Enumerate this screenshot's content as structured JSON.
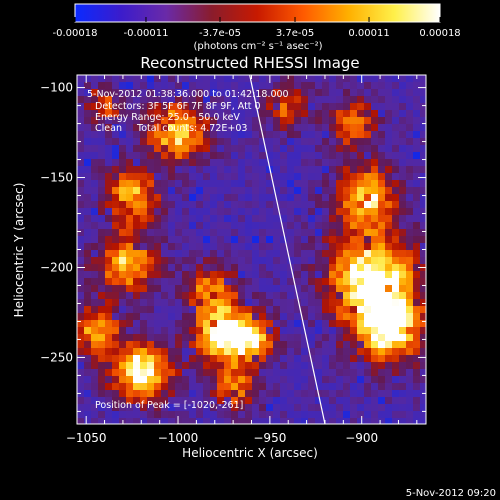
{
  "colorbar": {
    "ticks": [
      "-0.00018",
      "-0.00011",
      "-3.7e-05",
      "3.7e-05",
      "0.00011",
      "0.00018"
    ],
    "tick_values": [
      -0.00018,
      -0.00011,
      -3.7e-05,
      3.7e-05,
      0.00011,
      0.00018
    ],
    "range": [
      -0.00018,
      0.00018
    ],
    "unit_label": "(photons cm⁻² s⁻¹ asec⁻²)",
    "colors": [
      "#0a2aff",
      "#3b1ccc",
      "#6a2aa8",
      "#8a1c2c",
      "#c81a00",
      "#ff5a00",
      "#ffb000",
      "#fff04a",
      "#ffffff"
    ]
  },
  "chart_data": {
    "type": "heatmap",
    "title": "Reconstructed RHESSI Image",
    "xlabel": "Heliocentric X (arcsec)",
    "ylabel": "Heliocentric Y (arcsec)",
    "xlim": [
      -1055,
      -865
    ],
    "ylim": [
      -287,
      -93
    ],
    "x_ticks": [
      -1050,
      -1000,
      -950,
      -900
    ],
    "y_ticks": [
      -100,
      -150,
      -200,
      -250
    ],
    "annotations": [
      "5-Nov-2012 01:38:36.000 to 01:42:18.000",
      "Detectors: 3F 5F 6F 7F 8F 9F, Att 0",
      "Energy Range: 25.0 - 50.0 keV",
      "Clean     Total counts: 4.72E+03",
      "Position of Peak = [-1020,-261]"
    ],
    "peak": [
      -1020,
      -261
    ],
    "limb_line": [
      [
        -961,
        -93
      ],
      [
        -920,
        -287
      ]
    ],
    "hotspots": [
      {
        "x": -1000,
        "y": -125,
        "s": 12,
        "a": 0.85
      },
      {
        "x": -1025,
        "y": -160,
        "s": 11,
        "a": 0.75
      },
      {
        "x": -1028,
        "y": -198,
        "s": 12,
        "a": 0.8
      },
      {
        "x": -1045,
        "y": -235,
        "s": 10,
        "a": 0.7
      },
      {
        "x": -1020,
        "y": -258,
        "s": 12,
        "a": 1.0
      },
      {
        "x": -982,
        "y": -212,
        "s": 10,
        "a": 0.65
      },
      {
        "x": -975,
        "y": -238,
        "s": 12,
        "a": 0.95
      },
      {
        "x": -968,
        "y": -268,
        "s": 9,
        "a": 0.6
      },
      {
        "x": -940,
        "y": -110,
        "s": 9,
        "a": 0.6
      },
      {
        "x": -898,
        "y": -160,
        "s": 12,
        "a": 0.85
      },
      {
        "x": -895,
        "y": -205,
        "s": 18,
        "a": 1.0
      },
      {
        "x": -885,
        "y": -235,
        "s": 14,
        "a": 0.9
      },
      {
        "x": -905,
        "y": -120,
        "s": 10,
        "a": 0.6
      },
      {
        "x": -958,
        "y": -240,
        "s": 9,
        "a": 0.6
      },
      {
        "x": -1040,
        "y": -110,
        "s": 8,
        "a": 0.55
      }
    ]
  },
  "footer": {
    "timestamp": "5-Nov-2012 09:20"
  }
}
